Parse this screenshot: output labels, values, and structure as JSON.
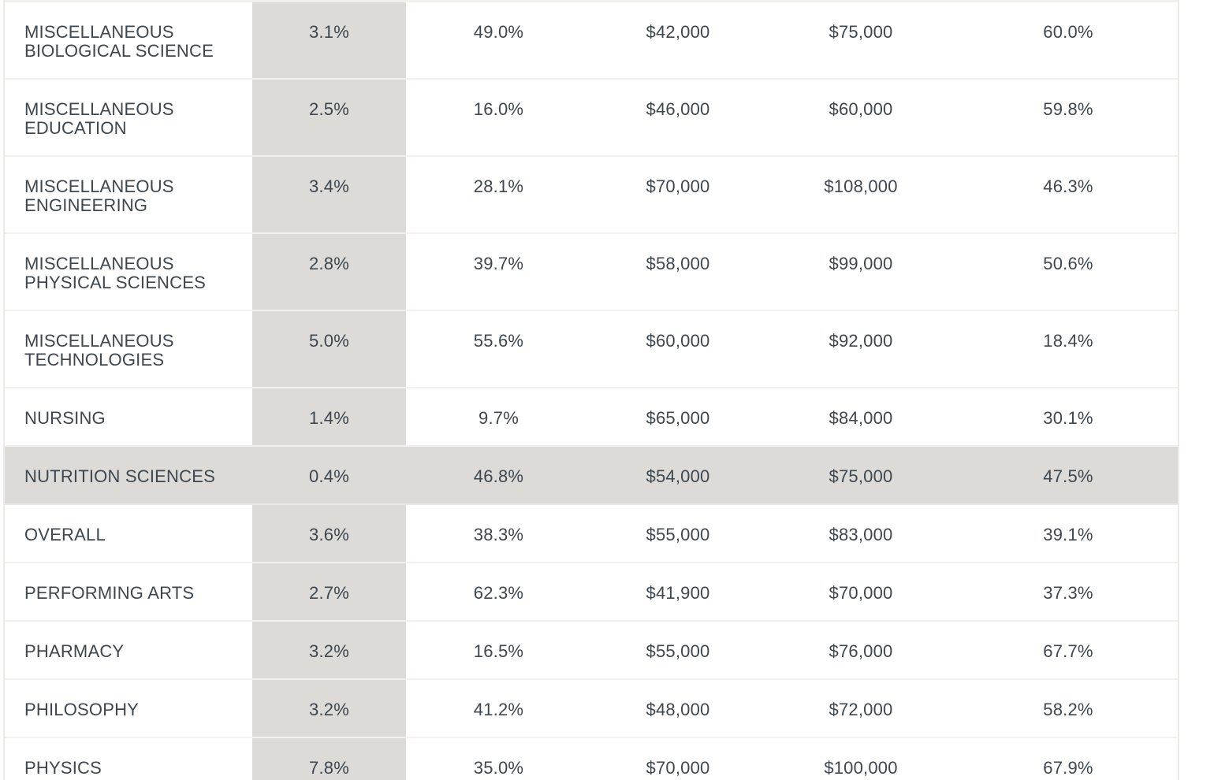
{
  "table": {
    "rows": [
      {
        "major": "Miscellaneous Biological Science",
        "c1": "3.1%",
        "c2": "49.0%",
        "c3": "$42,000",
        "c4": "$75,000",
        "c5": "60.0%"
      },
      {
        "major": "Miscellaneous Education",
        "c1": "2.5%",
        "c2": "16.0%",
        "c3": "$46,000",
        "c4": "$60,000",
        "c5": "59.8%"
      },
      {
        "major": "Miscellaneous Engineering",
        "c1": "3.4%",
        "c2": "28.1%",
        "c3": "$70,000",
        "c4": "$108,000",
        "c5": "46.3%"
      },
      {
        "major": "Miscellaneous Physical Sciences",
        "c1": "2.8%",
        "c2": "39.7%",
        "c3": "$58,000",
        "c4": "$99,000",
        "c5": "50.6%"
      },
      {
        "major": "Miscellaneous Technologies",
        "c1": "5.0%",
        "c2": "55.6%",
        "c3": "$60,000",
        "c4": "$92,000",
        "c5": "18.4%"
      },
      {
        "major": "Nursing",
        "c1": "1.4%",
        "c2": "9.7%",
        "c3": "$65,000",
        "c4": "$84,000",
        "c5": "30.1%"
      },
      {
        "major": "Nutrition Sciences",
        "c1": "0.4%",
        "c2": "46.8%",
        "c3": "$54,000",
        "c4": "$75,000",
        "c5": "47.5%"
      },
      {
        "major": "Overall",
        "c1": "3.6%",
        "c2": "38.3%",
        "c3": "$55,000",
        "c4": "$83,000",
        "c5": "39.1%"
      },
      {
        "major": "Performing Arts",
        "c1": "2.7%",
        "c2": "62.3%",
        "c3": "$41,900",
        "c4": "$70,000",
        "c5": "37.3%"
      },
      {
        "major": "Pharmacy",
        "c1": "3.2%",
        "c2": "16.5%",
        "c3": "$55,000",
        "c4": "$76,000",
        "c5": "67.7%"
      },
      {
        "major": "Philosophy",
        "c1": "3.2%",
        "c2": "41.2%",
        "c3": "$48,000",
        "c4": "$72,000",
        "c5": "58.2%"
      },
      {
        "major": "Physics",
        "c1": "7.8%",
        "c2": "35.0%",
        "c3": "$70,000",
        "c4": "$100,000",
        "c5": "67.9%"
      }
    ]
  },
  "colors": {
    "text": "#3e474f",
    "shaded_column": "#dcdbd7",
    "row_divider": "#f2f1ed"
  }
}
